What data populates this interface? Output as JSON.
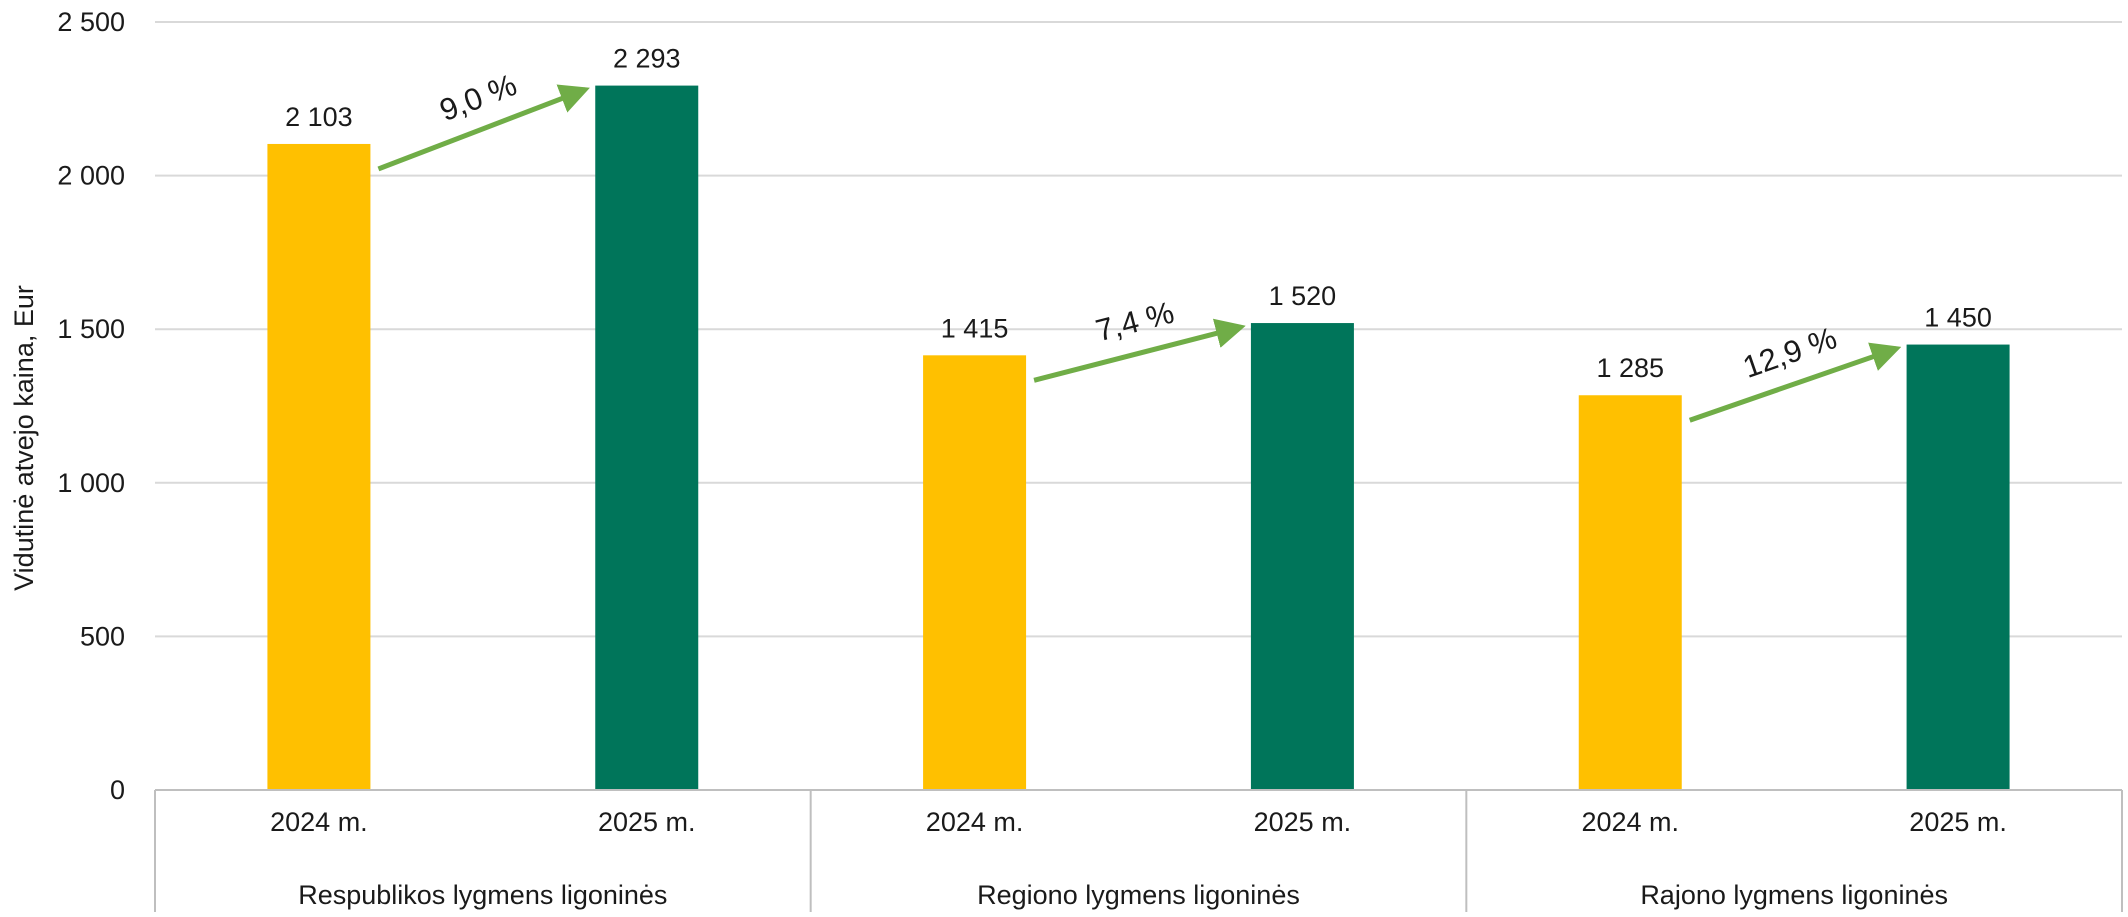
{
  "chart_data": {
    "type": "bar",
    "title": "",
    "ylabel": "Vidutinė atvejo kaina, Eur",
    "ylim": [
      0,
      2500
    ],
    "y_ticks": [
      0,
      500,
      1000,
      1500,
      2000,
      2500
    ],
    "y_tick_labels": [
      "0",
      "500",
      "1 000",
      "1 500",
      "2 000",
      "2 500"
    ],
    "grid": true,
    "legend": "none",
    "groups": [
      {
        "label": "Respublikos lygmens ligoninės",
        "bars": [
          {
            "category": "2024 m.",
            "value": 2103,
            "value_label": "2 103"
          },
          {
            "category": "2025 m.",
            "value": 2293,
            "value_label": "2 293"
          }
        ],
        "change_label": "9,0 %"
      },
      {
        "label": "Regiono lygmens ligoninės",
        "bars": [
          {
            "category": "2024 m.",
            "value": 1415,
            "value_label": "1 415"
          },
          {
            "category": "2025 m.",
            "value": 1520,
            "value_label": "1 520"
          }
        ],
        "change_label": "7,4 %"
      },
      {
        "label": "Rajono lygmens ligoninės",
        "bars": [
          {
            "category": "2024 m.",
            "value": 1285,
            "value_label": "1 285"
          },
          {
            "category": "2025 m.",
            "value": 1450,
            "value_label": "1 450"
          }
        ],
        "change_label": "12,9 %"
      }
    ],
    "colors": {
      "2024 m.": "#FFC000",
      "2025 m.": "#00755A",
      "arrow": "#70AD47",
      "grid": "#D9D9D9",
      "axis": "#BFBFBF"
    }
  }
}
